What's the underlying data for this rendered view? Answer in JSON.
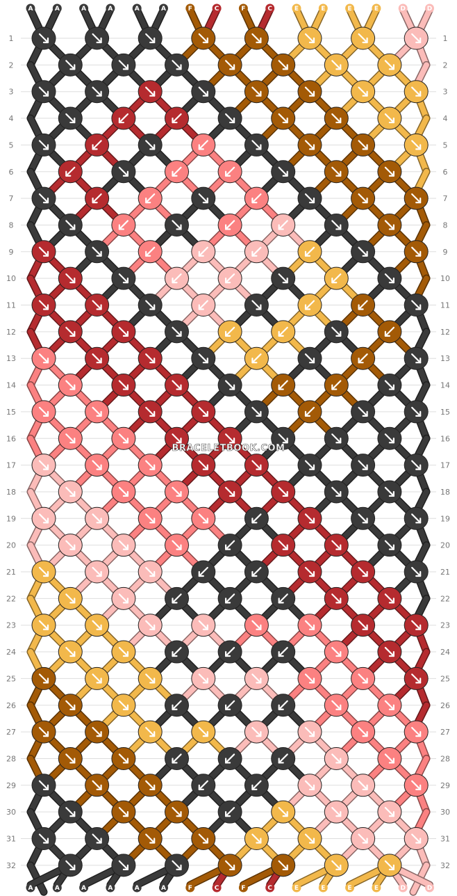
{
  "watermark": "BRACELETBOOK.COM",
  "strand_labels": [
    "A",
    "A",
    "A",
    "A",
    "A",
    "A",
    "F",
    "C",
    "F",
    "C",
    "E",
    "E",
    "E",
    "E",
    "D",
    "D"
  ],
  "rows": 32,
  "colors": {
    "A": "#3a3a3a",
    "C": "#b52b2f",
    "D": "#fbbcb9",
    "E": "#f2b84b",
    "F": "#a35a06",
    "G": "#fb8181"
  },
  "arrow_color": "#ffffff",
  "knots": [
    [
      "A",
      "A",
      "A",
      "F",
      "F",
      "E",
      "E",
      "D"
    ],
    [
      "A",
      "A",
      "A",
      "F",
      "F",
      "E",
      "E"
    ],
    [
      "A",
      "A",
      "C",
      "A",
      "F",
      "F",
      "E",
      "E"
    ],
    [
      "A",
      "C",
      "C",
      "A",
      "F",
      "F",
      "E"
    ],
    [
      "A",
      "C",
      "A",
      "G",
      "A",
      "F",
      "F",
      "E"
    ],
    [
      "C",
      "A",
      "G",
      "G",
      "A",
      "F",
      "F"
    ],
    [
      "A",
      "C",
      "G",
      "A",
      "G",
      "A",
      "F",
      "F"
    ],
    [
      "A",
      "G",
      "A",
      "G",
      "D",
      "A",
      "F"
    ],
    [
      "C",
      "A",
      "G",
      "D",
      "D",
      "E",
      "A",
      "F"
    ],
    [
      "C",
      "A",
      "D",
      "D",
      "A",
      "E",
      "A"
    ],
    [
      "C",
      "C",
      "A",
      "D",
      "A",
      "E",
      "F",
      "A"
    ],
    [
      "C",
      "C",
      "A",
      "E",
      "E",
      "A",
      "F"
    ],
    [
      "G",
      "C",
      "C",
      "A",
      "E",
      "A",
      "F",
      "A"
    ],
    [
      "G",
      "C",
      "C",
      "A",
      "F",
      "F",
      "A"
    ],
    [
      "G",
      "G",
      "C",
      "C",
      "A",
      "F",
      "A",
      "A"
    ],
    [
      "G",
      "G",
      "C",
      "C",
      "A",
      "A",
      "A"
    ],
    [
      "D",
      "G",
      "G",
      "C",
      "C",
      "A",
      "A",
      "A"
    ],
    [
      "D",
      "G",
      "G",
      "C",
      "C",
      "A",
      "A"
    ],
    [
      "D",
      "D",
      "G",
      "G",
      "A",
      "C",
      "A",
      "A"
    ],
    [
      "D",
      "D",
      "G",
      "A",
      "C",
      "C",
      "A"
    ],
    [
      "E",
      "D",
      "D",
      "A",
      "A",
      "C",
      "C",
      "A"
    ],
    [
      "E",
      "D",
      "A",
      "A",
      "A",
      "C",
      "C"
    ],
    [
      "E",
      "E",
      "D",
      "D",
      "G",
      "G",
      "C",
      "C"
    ],
    [
      "E",
      "E",
      "A",
      "A",
      "A",
      "G",
      "C"
    ],
    [
      "F",
      "E",
      "E",
      "D",
      "D",
      "G",
      "G",
      "C"
    ],
    [
      "F",
      "E",
      "A",
      "A",
      "A",
      "G",
      "G"
    ],
    [
      "F",
      "F",
      "E",
      "E",
      "D",
      "D",
      "G",
      "G"
    ],
    [
      "F",
      "F",
      "A",
      "A",
      "A",
      "D",
      "G"
    ],
    [
      "A",
      "F",
      "F",
      "A",
      "A",
      "D",
      "D",
      "G"
    ],
    [
      "A",
      "F",
      "F",
      "A",
      "E",
      "D",
      "D"
    ],
    [
      "A",
      "A",
      "F",
      "F",
      "E",
      "E",
      "D",
      "D"
    ],
    [
      "A",
      "A",
      "A",
      "F",
      "F",
      "E",
      "E"
    ]
  ],
  "arrows": [
    [
      "dr",
      "dr",
      "dr",
      "dr",
      "dr",
      "dr",
      "dr",
      "dr"
    ],
    [
      "dr",
      "dr",
      "dr",
      "dr",
      "dr",
      "dr",
      "dr"
    ],
    [
      "dr",
      "dr",
      "dr",
      "dr",
      "dr",
      "dr",
      "dr",
      "dr"
    ],
    [
      "dr",
      "dl",
      "dl",
      "dr",
      "dr",
      "dr",
      "dr"
    ],
    [
      "dr",
      "dl",
      "dr",
      "dl",
      "dr",
      "dr",
      "dr",
      "dr"
    ],
    [
      "dl",
      "dr",
      "dl",
      "dl",
      "dr",
      "dr",
      "dr"
    ],
    [
      "dr",
      "dl",
      "dl",
      "dr",
      "dl",
      "dr",
      "dr",
      "dr"
    ],
    [
      "dr",
      "dl",
      "dr",
      "dl",
      "dl",
      "dr",
      "dr"
    ],
    [
      "dr",
      "dr",
      "dl",
      "dl",
      "dl",
      "dl",
      "dr",
      "dr"
    ],
    [
      "dr",
      "dr",
      "dl",
      "dl",
      "dr",
      "dl",
      "dr"
    ],
    [
      "dr",
      "dr",
      "dr",
      "dl",
      "dr",
      "dl",
      "dl",
      "dr"
    ],
    [
      "dr",
      "dr",
      "dr",
      "dl",
      "dl",
      "dr",
      "dl"
    ],
    [
      "dr",
      "dr",
      "dr",
      "dr",
      "dl",
      "dr",
      "dl",
      "dr"
    ],
    [
      "dr",
      "dr",
      "dr",
      "dr",
      "dl",
      "dl",
      "dr"
    ],
    [
      "dr",
      "dr",
      "dr",
      "dr",
      "dr",
      "dl",
      "dr",
      "dr"
    ],
    [
      "dr",
      "dr",
      "dr",
      "dr",
      "dr",
      "dr",
      "dr"
    ],
    [
      "dr",
      "dr",
      "dr",
      "dr",
      "dr",
      "dr",
      "dr",
      "dr"
    ],
    [
      "dr",
      "dr",
      "dr",
      "dr",
      "dr",
      "dr",
      "dr"
    ],
    [
      "dr",
      "dr",
      "dr",
      "dr",
      "dl",
      "dr",
      "dr",
      "dr"
    ],
    [
      "dr",
      "dr",
      "dr",
      "dl",
      "dr",
      "dr",
      "dr"
    ],
    [
      "dr",
      "dr",
      "dr",
      "dl",
      "dl",
      "dr",
      "dr",
      "dr"
    ],
    [
      "dr",
      "dr",
      "dl",
      "dl",
      "dl",
      "dr",
      "dr"
    ],
    [
      "dr",
      "dr",
      "dr",
      "dr",
      "dr",
      "dr",
      "dr",
      "dr"
    ],
    [
      "dr",
      "dr",
      "dl",
      "dl",
      "dl",
      "dr",
      "dr"
    ],
    [
      "dr",
      "dr",
      "dr",
      "dr",
      "dr",
      "dr",
      "dr",
      "dr"
    ],
    [
      "dr",
      "dr",
      "dl",
      "dl",
      "dl",
      "dr",
      "dr"
    ],
    [
      "dr",
      "dr",
      "dr",
      "dr",
      "dr",
      "dr",
      "dr",
      "dr"
    ],
    [
      "dr",
      "dr",
      "dl",
      "dl",
      "dl",
      "dr",
      "dr"
    ],
    [
      "dr",
      "dr",
      "dr",
      "dl",
      "dl",
      "dr",
      "dr",
      "dr"
    ],
    [
      "dr",
      "dr",
      "dr",
      "dl",
      "dr",
      "dr",
      "dr"
    ],
    [
      "dr",
      "dr",
      "dr",
      "dr",
      "dr",
      "dr",
      "dr",
      "dr"
    ],
    [
      "dr",
      "dr",
      "dr",
      "dr",
      "dr",
      "dr",
      "dr"
    ]
  ]
}
